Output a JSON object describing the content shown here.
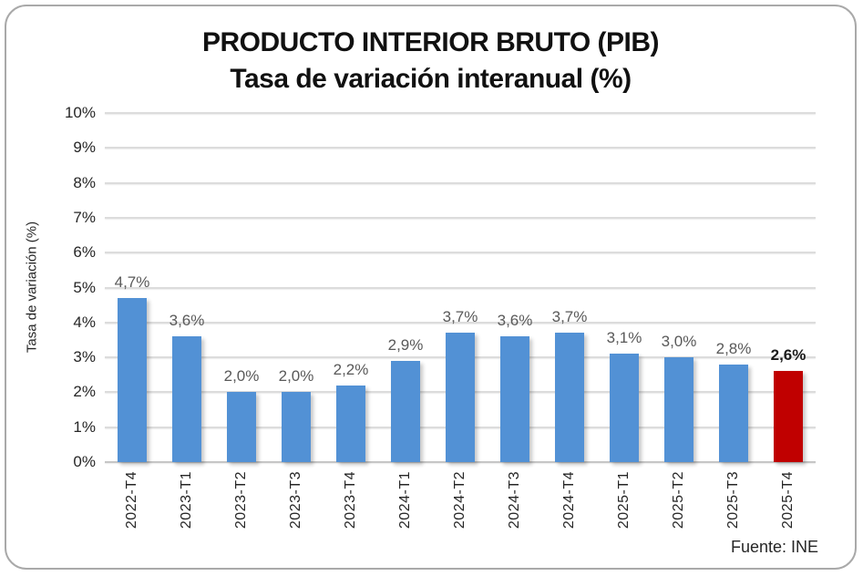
{
  "chart": {
    "header": {
      "title": "PRODUCTO INTERIOR BRUTO (PIB)",
      "subtitle": "Tasa de variación interanual (%)"
    },
    "source_note": "Fuente: INE"
  },
  "chart_data": {
    "type": "bar",
    "title": "PRODUCTO INTERIOR BRUTO (PIB)",
    "subtitle": "Tasa de variación interanual (%)",
    "xlabel": "",
    "ylabel": "Tasa de variación (%)",
    "categories": [
      "2022-T4",
      "2023-T1",
      "2023-T2",
      "2023-T3",
      "2023-T4",
      "2024-T1",
      "2024-T2",
      "2024-T3",
      "2024-T4",
      "2025-T1",
      "2025-T2",
      "2025-T3",
      "2025-T4"
    ],
    "values": [
      4.7,
      3.6,
      2.0,
      2.0,
      2.2,
      2.9,
      3.7,
      3.6,
      3.7,
      3.1,
      3.0,
      2.8,
      2.6
    ],
    "labels": [
      "4,7%",
      "3,6%",
      "2,0%",
      "2,0%",
      "2,2%",
      "2,9%",
      "3,7%",
      "3,6%",
      "3,7%",
      "3,1%",
      "3,0%",
      "2,8%",
      "2,6%"
    ],
    "ylim": [
      0,
      10
    ],
    "ytick_step": 1,
    "ytick_suffix": "%",
    "grid": true,
    "legend": "none",
    "bar_color": "#5291D5",
    "highlight_index": 12,
    "highlight_color": "#C00000",
    "source": "Fuente: INE"
  }
}
